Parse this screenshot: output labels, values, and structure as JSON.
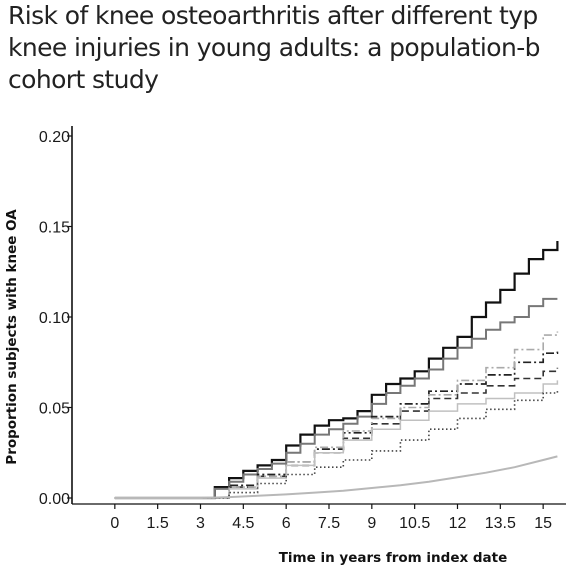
{
  "title_lines": [
    "Risk of knee osteoarthritis after different typ",
    "knee injuries in young adults: a population-b",
    "cohort study"
  ],
  "chart_data": {
    "type": "line",
    "title": "Risk of knee osteoarthritis after different types of knee injuries in young adults: a population-based cohort study",
    "xlabel": "Time in years from index date",
    "ylabel": "Proportion subjects with knee OA",
    "xlim": [
      -1.5,
      15.8
    ],
    "ylim": [
      0.0,
      0.2
    ],
    "x_ticks": [
      0,
      1.5,
      3,
      4.5,
      6,
      7.5,
      9,
      10.5,
      12,
      13.5,
      15
    ],
    "x_tick_labels": [
      "0",
      "1.5",
      "3",
      "4.5",
      "6",
      "7.5",
      "9",
      "10.5",
      "12",
      "13.5",
      "15"
    ],
    "y_ticks": [
      0,
      0.05,
      0.1,
      0.15,
      0.2
    ],
    "y_tick_labels": [
      "0.00",
      "0.05",
      "0.10",
      "0.15",
      "0.20"
    ],
    "grid": false,
    "legend": "none",
    "series": [
      {
        "style": "solid",
        "color": "#111111",
        "width": 2.2,
        "x": [
          0,
          3,
          3.5,
          4,
          4.5,
          5,
          5.5,
          6,
          6.5,
          7,
          7.5,
          8,
          8.5,
          9,
          9.5,
          10,
          10.5,
          11,
          11.5,
          12,
          12.5,
          13,
          13.5,
          14,
          14.5,
          15,
          15.5
        ],
        "y": [
          0,
          0,
          0.006,
          0.011,
          0.015,
          0.018,
          0.021,
          0.029,
          0.035,
          0.04,
          0.043,
          0.044,
          0.048,
          0.057,
          0.063,
          0.066,
          0.07,
          0.077,
          0.083,
          0.089,
          0.1,
          0.108,
          0.115,
          0.124,
          0.132,
          0.137,
          0.142
        ]
      },
      {
        "style": "solid",
        "color": "#777777",
        "width": 2.0,
        "x": [
          0,
          3,
          3.5,
          4,
          4.5,
          5,
          5.5,
          6,
          6.5,
          7,
          7.5,
          8,
          8.5,
          9,
          9.5,
          10,
          10.5,
          11,
          11.5,
          12,
          12.5,
          13,
          13.5,
          14,
          14.5,
          15,
          15.5
        ],
        "y": [
          0,
          0,
          0.005,
          0.009,
          0.013,
          0.016,
          0.019,
          0.025,
          0.03,
          0.035,
          0.038,
          0.041,
          0.045,
          0.052,
          0.058,
          0.062,
          0.066,
          0.071,
          0.077,
          0.083,
          0.088,
          0.093,
          0.097,
          0.1,
          0.106,
          0.11,
          0.11
        ]
      },
      {
        "style": "dashdot",
        "color": "#222222",
        "width": 1.7,
        "x": [
          0,
          3,
          4,
          5,
          6,
          7,
          8,
          9,
          10,
          11,
          12,
          13,
          14,
          15,
          15.5
        ],
        "y": [
          0,
          0,
          0.007,
          0.013,
          0.02,
          0.027,
          0.036,
          0.045,
          0.052,
          0.059,
          0.063,
          0.068,
          0.075,
          0.08,
          0.082
        ]
      },
      {
        "style": "dashed",
        "color": "#333333",
        "width": 1.6,
        "x": [
          0,
          3,
          4,
          5,
          6,
          7,
          8,
          9,
          10,
          11,
          12,
          13,
          14,
          15,
          15.5
        ],
        "y": [
          0,
          0,
          0.006,
          0.012,
          0.018,
          0.025,
          0.033,
          0.041,
          0.048,
          0.055,
          0.058,
          0.062,
          0.066,
          0.07,
          0.072
        ]
      },
      {
        "style": "dashdot",
        "color": "#aaaaaa",
        "width": 1.6,
        "x": [
          0,
          3,
          4,
          5,
          6,
          7,
          8,
          9,
          10,
          11,
          12,
          13,
          14,
          15,
          15.5
        ],
        "y": [
          0,
          0,
          0.006,
          0.012,
          0.02,
          0.028,
          0.037,
          0.044,
          0.05,
          0.057,
          0.065,
          0.072,
          0.082,
          0.09,
          0.092
        ]
      },
      {
        "style": "solid",
        "color": "#c0c0c0",
        "width": 1.5,
        "x": [
          0,
          3,
          4,
          5,
          6,
          7,
          8,
          9,
          10,
          11,
          12,
          13,
          14,
          15,
          15.5
        ],
        "y": [
          0,
          0,
          0.005,
          0.011,
          0.018,
          0.025,
          0.032,
          0.038,
          0.043,
          0.048,
          0.052,
          0.055,
          0.058,
          0.063,
          0.065
        ]
      },
      {
        "style": "dotted",
        "color": "#444444",
        "width": 1.6,
        "x": [
          0,
          3,
          4,
          5,
          6,
          7,
          8,
          9,
          10,
          11,
          12,
          13,
          14,
          15,
          15.5
        ],
        "y": [
          0,
          0,
          0.003,
          0.008,
          0.013,
          0.017,
          0.021,
          0.026,
          0.032,
          0.038,
          0.044,
          0.049,
          0.054,
          0.058,
          0.06
        ]
      },
      {
        "style": "smooth",
        "color": "#b8b8b8",
        "width": 2.0,
        "x": [
          0,
          3,
          4,
          5,
          6,
          7,
          8,
          9,
          10,
          11,
          12,
          13,
          14,
          15,
          15.5
        ],
        "y": [
          0,
          0,
          0.0005,
          0.0012,
          0.002,
          0.003,
          0.004,
          0.0055,
          0.007,
          0.009,
          0.0115,
          0.014,
          0.017,
          0.021,
          0.023
        ]
      }
    ]
  }
}
